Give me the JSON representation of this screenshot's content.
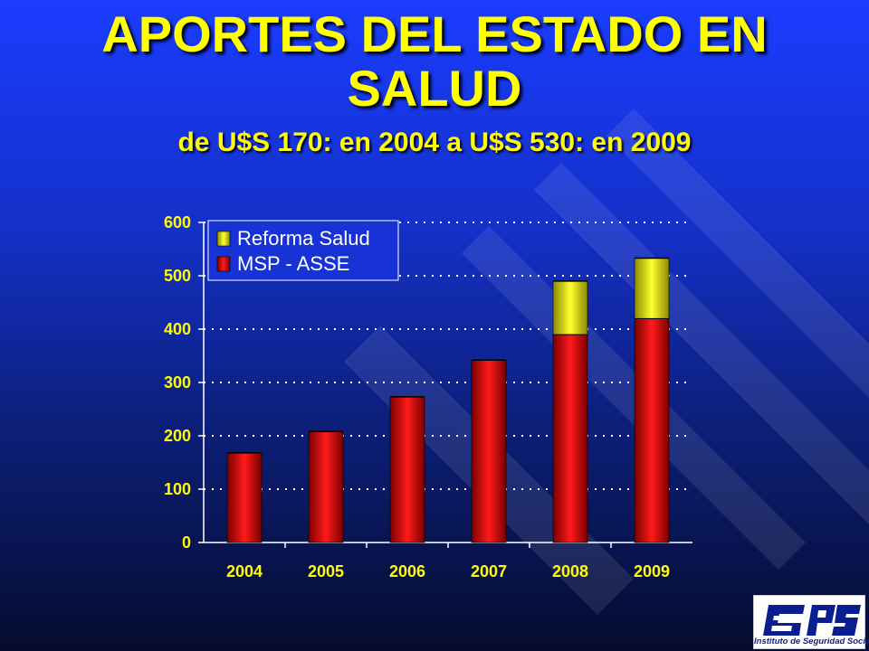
{
  "slide": {
    "title_line1": "APORTES DEL ESTADO EN",
    "title_line2": "SALUD",
    "subtitle": "de U$S 170: en 2004 a U$S 530:  en 2009"
  },
  "colors": {
    "title": "#ffff00",
    "msp_asse": "#e00000",
    "reforma_salud": "#ffff00",
    "grid": "#ffffff",
    "plot_background": "transparent"
  },
  "logo": {
    "text": "BPS",
    "caption": "Instituto de Seguridad Social"
  },
  "chart_data": {
    "type": "bar",
    "stacked": true,
    "categories": [
      "2004",
      "2005",
      "2006",
      "2007",
      "2008",
      "2009"
    ],
    "series": [
      {
        "name": "MSP - ASSE",
        "values": [
          168,
          208,
          273,
          342,
          390,
          420
        ],
        "color": "#e00000"
      },
      {
        "name": "Reforma Salud",
        "values": [
          0,
          0,
          0,
          0,
          100,
          113
        ],
        "color": "#ffff00"
      }
    ],
    "ylim": [
      0,
      600
    ],
    "yticks": [
      "0",
      "100",
      "200",
      "300",
      "400",
      "500",
      "600"
    ],
    "grid": true,
    "legend": [
      "Reforma Salud",
      "MSP - ASSE"
    ],
    "legend_position": "top-left"
  }
}
